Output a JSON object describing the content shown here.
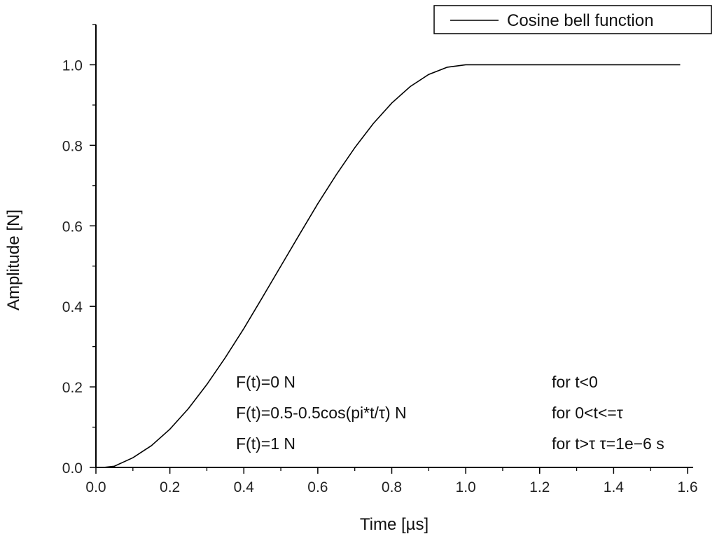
{
  "chart_data": {
    "type": "line",
    "title": "",
    "xlabel": "Time [µs]",
    "ylabel": "Amplitude [N]",
    "xlim": [
      0.0,
      1.6
    ],
    "ylim": [
      0.0,
      1.1
    ],
    "grid": false,
    "legend_position": "top-right",
    "x_ticks": [
      "0.0",
      "0.2",
      "0.4",
      "0.6",
      "0.8",
      "1.0",
      "1.2",
      "1.4",
      "1.6"
    ],
    "y_ticks": [
      "0.0",
      "0.2",
      "0.4",
      "0.6",
      "0.8",
      "1.0"
    ],
    "series": [
      {
        "name": "Cosine bell function",
        "color": "#000000",
        "x": [
          0.02,
          0.05,
          0.1,
          0.15,
          0.2,
          0.25,
          0.3,
          0.35,
          0.4,
          0.45,
          0.5,
          0.55,
          0.6,
          0.65,
          0.7,
          0.75,
          0.8,
          0.85,
          0.9,
          0.95,
          1.0,
          1.1,
          1.2,
          1.3,
          1.4,
          1.5,
          1.58
        ],
        "y": [
          0.0,
          0.003,
          0.024,
          0.054,
          0.095,
          0.146,
          0.206,
          0.273,
          0.345,
          0.422,
          0.5,
          0.578,
          0.655,
          0.727,
          0.794,
          0.854,
          0.905,
          0.946,
          0.976,
          0.994,
          1.0,
          1.0,
          1.0,
          1.0,
          1.0,
          1.0,
          1.0
        ]
      }
    ],
    "annotations": {
      "left": [
        "F(t)=0 N",
        "F(t)=0.5-0.5cos(pi*t/τ) N",
        "F(t)=1 N"
      ],
      "right": [
        "for t<0",
        "for 0<t<=τ",
        "for t>τ τ=1e−6 s"
      ]
    }
  }
}
